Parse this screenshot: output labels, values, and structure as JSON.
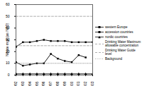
{
  "chart_data": {
    "type": "line",
    "y_label": "Nitrate mg/l (as NO3)",
    "x": [
      1992,
      1993,
      1994,
      1995,
      1996,
      1997,
      1998,
      1999,
      2000,
      2001,
      2002,
      2003
    ],
    "xlim": [
      1992,
      2003
    ],
    "xticks": [
      1992,
      1993,
      1994,
      1995,
      1996,
      1997,
      1998,
      1999,
      2000,
      2001,
      2002,
      2003
    ],
    "ylim": [
      0,
      60
    ],
    "yticks": [
      0,
      10,
      20,
      30,
      40,
      50,
      60
    ],
    "legend": "right",
    "series": [
      {
        "name": "western Europe",
        "color": "#000000",
        "marker": "square",
        "line_style": "solid",
        "values": [
          24,
          28,
          28,
          29,
          30,
          29,
          29,
          29,
          28,
          28,
          28,
          28
        ]
      },
      {
        "name": "accession countries",
        "color": "#000000",
        "marker": "square",
        "line_style": "solid",
        "values": [
          11,
          8,
          9,
          10,
          10,
          18,
          14,
          12,
          11,
          17,
          15,
          null
        ]
      },
      {
        "name": "nordic countries",
        "color": "#000000",
        "marker": "triangle",
        "line_style": "solid",
        "values": [
          1,
          1,
          1,
          1,
          1,
          1,
          1,
          1,
          1,
          1,
          1,
          1
        ]
      },
      {
        "name": "Drinking Water Maximum allowable concentration",
        "color": "#999999",
        "marker": "none",
        "line_style": "dashed",
        "values": [
          50,
          50,
          50,
          50,
          50,
          50,
          50,
          50,
          50,
          50,
          50,
          50
        ]
      },
      {
        "name": "Drinking Water Guide level",
        "color": "#999999",
        "marker": "none",
        "line_style": "dashed",
        "values": [
          25,
          25,
          25,
          25,
          25,
          25,
          25,
          25,
          25,
          25,
          25,
          25
        ]
      },
      {
        "name": "Background",
        "color": "#999999",
        "marker": "none",
        "line_style": "dotted",
        "values": [
          10,
          10,
          10,
          10,
          10,
          10,
          10,
          10,
          10,
          10,
          10,
          10
        ]
      }
    ]
  }
}
